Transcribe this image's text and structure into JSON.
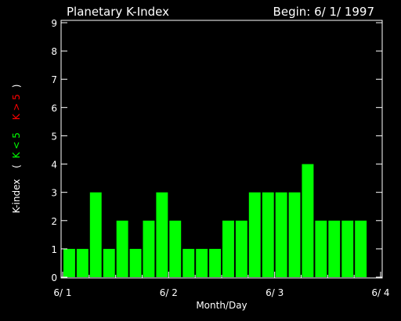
{
  "chart_data": {
    "type": "bar",
    "title": "Planetary K-Index",
    "begin_label": "Begin: 6/ 1/ 1997",
    "xlabel": "Month/Day",
    "ylabel": {
      "prefix": "K-index",
      "open_paren": "(",
      "green_part": "K < 5",
      "red_part": "K > 5",
      "close_paren": ")"
    },
    "ylim": [
      0,
      9
    ],
    "yticks": [
      "0",
      "1",
      "2",
      "3",
      "4",
      "5",
      "6",
      "7",
      "8",
      "9"
    ],
    "xticks": [
      "6/ 1",
      "6/ 2",
      "6/ 3",
      "6/ 4"
    ],
    "x_span_days": 3,
    "bars_per_day": 8,
    "values": [
      1,
      1,
      3,
      1,
      2,
      1,
      2,
      3,
      2,
      1,
      1,
      1,
      2,
      2,
      3,
      3,
      3,
      3,
      4,
      2,
      2,
      2,
      2
    ],
    "threshold": 5,
    "colors": {
      "background": "#000000",
      "axes": "#ffffff",
      "bar_normal": "#00ff00",
      "bar_high": "#ff0000",
      "label_green": "#00ff00",
      "label_red": "#ff0000"
    }
  }
}
